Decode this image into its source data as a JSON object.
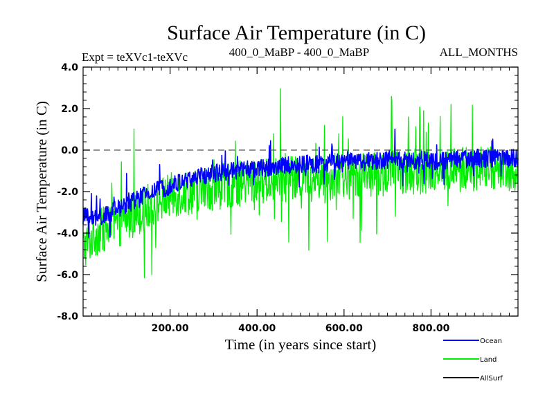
{
  "chart_data": {
    "type": "line",
    "title": "Surface Air Temperature (in C)",
    "subtitle_left": "Expt = teXVc1-teXVc",
    "subtitle_center": "400_0_MaBP - 400_0_MaBP",
    "subtitle_right": "ALL_MONTHS",
    "xlabel": "Time (in years since start)",
    "ylabel": "Surface Air Temperature (in C)",
    "xlim": [
      0,
      1000
    ],
    "ylim": [
      -8,
      4
    ],
    "x_ticks": [
      200,
      400,
      600,
      800
    ],
    "x_tick_labels": [
      "200.00",
      "400.00",
      "600.00",
      "800.00"
    ],
    "y_ticks": [
      -8,
      -6,
      -4,
      -2,
      0,
      2,
      4
    ],
    "y_tick_labels": [
      "-8.0",
      "-6.0",
      "-4.0",
      "-2.0",
      "0.0",
      "2.0",
      "4.0"
    ],
    "reference_line": {
      "y": 0,
      "style": "dashed"
    },
    "legend_position": "bottom-right",
    "series": [
      {
        "name": "Land",
        "color": "#00ee00",
        "trend_x": [
          0,
          25,
          50,
          75,
          100,
          150,
          200,
          250,
          300,
          400,
          500,
          600,
          700,
          800,
          900,
          1000
        ],
        "trend_y": [
          -4.7,
          -4.1,
          -3.8,
          -3.7,
          -3.3,
          -2.7,
          -2.2,
          -2.0,
          -1.8,
          -1.5,
          -1.4,
          -1.3,
          -1.1,
          -1.0,
          -0.9,
          -0.9
        ],
        "noise_amplitude": 1.1,
        "peak_amplitude": 3.2
      },
      {
        "name": "Ocean",
        "color": "#0000ff",
        "trend_x": [
          0,
          25,
          50,
          75,
          100,
          150,
          200,
          250,
          300,
          400,
          500,
          600,
          700,
          800,
          900,
          1000
        ],
        "trend_y": [
          -3.2,
          -3.3,
          -3.2,
          -2.9,
          -2.6,
          -2.1,
          -1.7,
          -1.4,
          -1.1,
          -0.9,
          -0.7,
          -0.6,
          -0.5,
          -0.5,
          -0.4,
          -0.4
        ],
        "noise_amplitude": 0.45,
        "peak_amplitude": 1.2
      },
      {
        "name": "AllSurf",
        "color": "#000000",
        "trend_x": [],
        "trend_y": [],
        "noise_amplitude": 0,
        "peak_amplitude": 0
      }
    ]
  }
}
